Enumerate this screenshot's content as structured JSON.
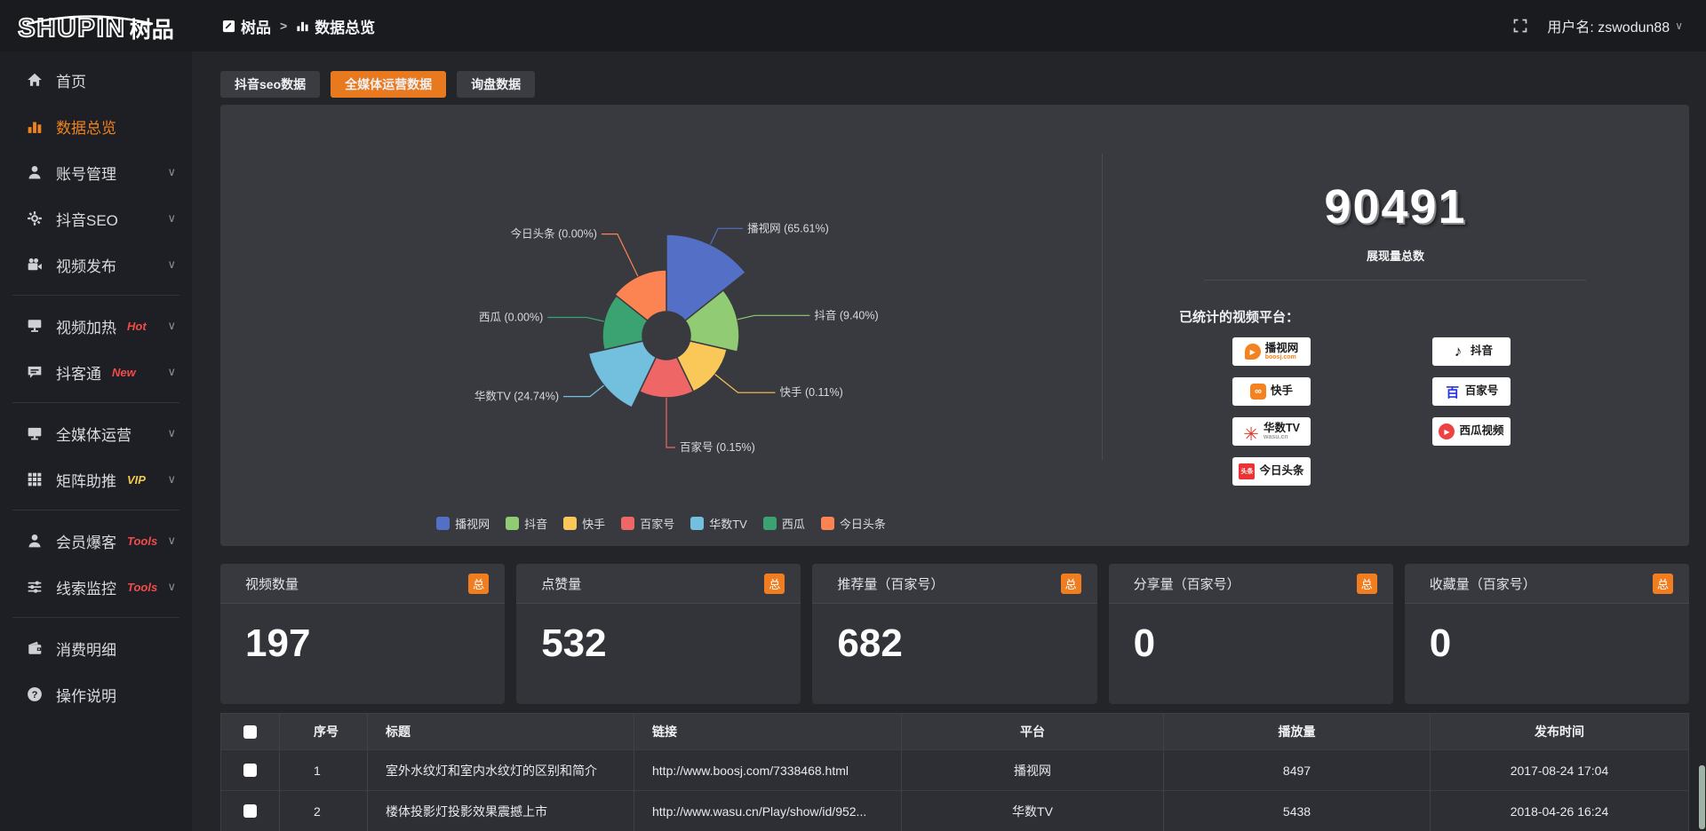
{
  "topbar": {
    "logo_main": "SHUPIN",
    "logo_sub": "树品",
    "breadcrumb": {
      "home": "树品",
      "separator": ">",
      "current": "数据总览"
    },
    "user": "用户名: zswodun88"
  },
  "sidebar": {
    "items": [
      {
        "label": "首页",
        "icon": "home-icon"
      },
      {
        "label": "数据总览",
        "icon": "bar-chart-icon",
        "active": true
      },
      {
        "label": "账号管理",
        "icon": "user-icon",
        "expandable": true
      },
      {
        "label": "抖音SEO",
        "icon": "gear-icon",
        "expandable": true
      },
      {
        "label": "视频发布",
        "icon": "video-camera-icon",
        "expandable": true
      },
      {
        "label": "视频加热",
        "icon": "screen-icon",
        "badge": "Hot",
        "badge_color": "#f24b4b",
        "expandable": true
      },
      {
        "label": "抖客通",
        "icon": "chat-bubble-icon",
        "badge": "New",
        "badge_color": "#f24b4b",
        "expandable": true
      },
      {
        "label": "全媒体运营",
        "icon": "monitor-icon",
        "expandable": true
      },
      {
        "label": "矩阵助推",
        "icon": "grid-icon",
        "badge": "VIP",
        "badge_color": "#f2c94c",
        "expandable": true
      },
      {
        "label": "会员爆客",
        "icon": "person-icon",
        "badge": "Tools",
        "badge_color": "#f24b4b",
        "expandable": true
      },
      {
        "label": "线索监控",
        "icon": "sliders-icon",
        "badge": "Tools",
        "badge_color": "#f24b4b",
        "expandable": true
      },
      {
        "label": "消费明细",
        "icon": "wallet-icon"
      },
      {
        "label": "操作说明",
        "icon": "question-circle-icon"
      }
    ]
  },
  "tabs": [
    {
      "label": "抖音seo数据",
      "active": false
    },
    {
      "label": "全媒体运营数据",
      "active": true
    },
    {
      "label": "询盘数据",
      "active": false
    }
  ],
  "overview": {
    "total_value": "90491",
    "total_label": "展现量总数",
    "platforms_title": "已统计的视频平台："
  },
  "platforms": [
    {
      "name": "播视网",
      "sub": "boosj.com"
    },
    {
      "name": "快手"
    },
    {
      "name": "华数TV",
      "sub": "wasu.cn"
    },
    {
      "name": "今日头条"
    },
    {
      "name": "抖音"
    },
    {
      "name": "百家号"
    },
    {
      "name": "西瓜视频"
    }
  ],
  "cards": [
    {
      "label": "视频数量",
      "badge": "总",
      "value": "197"
    },
    {
      "label": "点赞量",
      "badge": "总",
      "value": "532"
    },
    {
      "label": "推荐量（百家号）",
      "badge": "总",
      "value": "682"
    },
    {
      "label": "分享量（百家号）",
      "badge": "总",
      "value": "0"
    },
    {
      "label": "收藏量（百家号）",
      "badge": "总",
      "value": "0"
    }
  ],
  "table": {
    "columns": [
      "",
      "序号",
      "标题",
      "链接",
      "平台",
      "播放量",
      "发布时间"
    ],
    "rows": [
      {
        "seq": "1",
        "title": "室外水纹灯和室内水纹灯的区别和简介",
        "link": "http://www.boosj.com/7338468.html",
        "platform": "播视网",
        "plays": "8497",
        "time": "2017-08-24 17:04"
      },
      {
        "seq": "2",
        "title": "楼体投影灯投影效果震撼上市",
        "link": "http://www.wasu.cn/Play/show/id/952...",
        "platform": "华数TV",
        "plays": "5438",
        "time": "2018-04-26 16:24"
      }
    ]
  },
  "chart_data": {
    "type": "pie",
    "rose": true,
    "inner_radius": 27,
    "legend_position": "bottom",
    "slices": [
      {
        "label": "播视网",
        "pct": 65.61,
        "label_text": "播视网 (65.61%)",
        "color": "#5470c6",
        "radius": 114
      },
      {
        "label": "抖音",
        "pct": 9.4,
        "label_text": "抖音 (9.40%)",
        "color": "#91cc75",
        "radius": 82
      },
      {
        "label": "快手",
        "pct": 0.11,
        "label_text": "快手 (0.11%)",
        "color": "#fac858",
        "radius": 70
      },
      {
        "label": "百家号",
        "pct": 0.15,
        "label_text": "百家号 (0.15%)",
        "color": "#ee6666",
        "radius": 70
      },
      {
        "label": "华数TV",
        "pct": 24.74,
        "label_text": "华数TV (24.74%)",
        "color": "#73c0de",
        "radius": 90
      },
      {
        "label": "西瓜",
        "pct": 0.0,
        "label_text": "西瓜 (0.00%)",
        "color": "#3ba272",
        "radius": 72
      },
      {
        "label": "今日头条",
        "pct": 0.0,
        "label_text": "今日头条 (0.00%)",
        "color": "#fc8452",
        "radius": 74
      }
    ]
  }
}
